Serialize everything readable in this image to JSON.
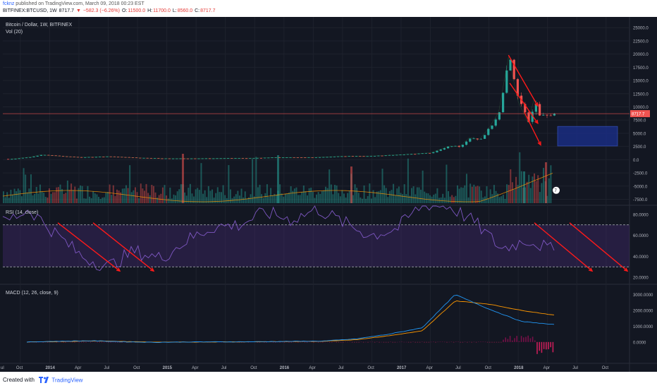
{
  "header": {
    "author": "fcknz",
    "published_text": "published on TradingView.com, March 09, 2018 00:23 EST",
    "symbol": "BITFINEX:BTCUSD, 1W",
    "last_price": "8717.7",
    "change_text": "−582.3 (−6.26%)",
    "open_label": "O:",
    "open_value": "11500.0",
    "high_label": "H:",
    "high_value": "11700.0",
    "low_label": "L:",
    "low_value": "8560.0",
    "close_label": "C:",
    "close_value": "8717.7"
  },
  "colors": {
    "background": "#131722",
    "up": "#26a69a",
    "down": "#ef5350",
    "rsi_line": "#7e57c2",
    "macd_line": "#2196f3",
    "signal_line": "#ff9800",
    "arrow": "#ff1a1a",
    "target_box": "#1a2f8f"
  },
  "chart_data": [
    {
      "type": "candlestick",
      "title": "Bitcoin / Dollar, 1W, BITFINEX",
      "indicator_label": "Vol (20)",
      "y_ticks": [
        "25000.0",
        "22500.0",
        "20000.0",
        "17500.0",
        "15000.0",
        "12500.0",
        "10000.0",
        "7500.0",
        "5000.0",
        "2500.0",
        "0.0",
        "-2500.0",
        "-5000.0",
        "-7500.0"
      ],
      "ylim": [
        -8500,
        26500
      ],
      "last_price_label": "8717.7",
      "last_price": 8717.7,
      "annotations": {
        "price_bubble": "7"
      },
      "points": [
        {
          "date": "2013-09",
          "price": 130
        },
        {
          "date": "2013-11",
          "price": 500
        },
        {
          "date": "2013-12",
          "price": 900
        },
        {
          "date": "2014-01",
          "price": 800
        },
        {
          "date": "2014-04",
          "price": 450
        },
        {
          "date": "2014-07",
          "price": 600
        },
        {
          "date": "2014-10",
          "price": 350
        },
        {
          "date": "2015-01",
          "price": 220
        },
        {
          "date": "2015-04",
          "price": 230
        },
        {
          "date": "2015-07",
          "price": 280
        },
        {
          "date": "2015-10",
          "price": 300
        },
        {
          "date": "2015-12",
          "price": 430
        },
        {
          "date": "2016-04",
          "price": 440
        },
        {
          "date": "2016-07",
          "price": 650
        },
        {
          "date": "2016-10",
          "price": 700
        },
        {
          "date": "2017-01",
          "price": 950
        },
        {
          "date": "2017-04",
          "price": 1300
        },
        {
          "date": "2017-06",
          "price": 2600
        },
        {
          "date": "2017-07",
          "price": 2500
        },
        {
          "date": "2017-08",
          "price": 4200
        },
        {
          "date": "2017-09",
          "price": 3800
        },
        {
          "date": "2017-10",
          "price": 6000
        },
        {
          "date": "2017-11",
          "price": 9000
        },
        {
          "date": "2017-12",
          "price": 19500
        },
        {
          "date": "2018-01",
          "price": 11000
        },
        {
          "date": "2018-02",
          "price": 7000
        },
        {
          "date": "2018-02-20",
          "price": 11500
        },
        {
          "date": "2018-03",
          "price": 8717.7
        }
      ],
      "volume_overlay": {
        "ma_period": 20
      }
    },
    {
      "type": "line",
      "title": "RSI (14, close)",
      "y_ticks": [
        "80.0000",
        "60.0000",
        "40.0000",
        "20.0000"
      ],
      "ylim": [
        14,
        88
      ],
      "bands": [
        70,
        30
      ],
      "series": [
        {
          "values": [
            72,
            85,
            62,
            40,
            30,
            45,
            38,
            55,
            68,
            70,
            82,
            75,
            85,
            72,
            60,
            66,
            90,
            88,
            72,
            47,
            56,
            45
          ]
        }
      ]
    },
    {
      "type": "line",
      "title": "MACD (12, 26, close, 9)",
      "y_ticks": [
        "3000.0000",
        "2000.0000",
        "1000.0000",
        "0.0000"
      ],
      "ylim": [
        -1300,
        3600
      ],
      "series": [
        {
          "values": [
            0,
            50,
            80,
            10,
            -20,
            5,
            10,
            20,
            40,
            60,
            200,
            500,
            900,
            3000,
            2100,
            1300,
            1100
          ]
        },
        {
          "values": [
            0,
            30,
            70,
            30,
            -10,
            0,
            10,
            15,
            30,
            50,
            150,
            400,
            700,
            2600,
            2400,
            2000,
            1700
          ]
        }
      ]
    }
  ],
  "x_axis": {
    "ticks": [
      "ul",
      "Oct",
      "2014",
      "Apr",
      "Jul",
      "Oct",
      "2015",
      "Apr",
      "Jul",
      "Oct",
      "2016",
      "Apr",
      "Jul",
      "Oct",
      "2017",
      "Apr",
      "Jul",
      "Oct",
      "2018",
      "Apr",
      "Jul",
      "Oct"
    ]
  },
  "footer": {
    "created_with": "Created with",
    "brand": "TradingView"
  }
}
